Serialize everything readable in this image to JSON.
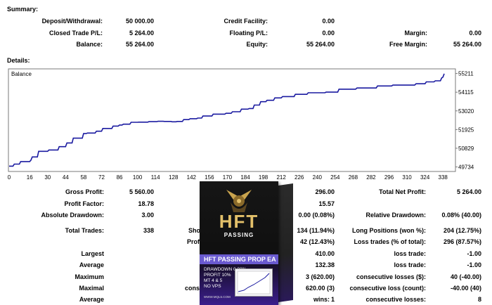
{
  "summary_title": "Summary:",
  "details_title": "Details:",
  "summary": {
    "deposit_label": "Deposit/Withdrawal:",
    "deposit": "50 000.00",
    "closed_pl_label": "Closed Trade P/L:",
    "closed_pl": "5 264.00",
    "balance_label": "Balance:",
    "balance": "55 264.00",
    "credit_label": "Credit Facility:",
    "credit": "0.00",
    "floating_label": "Floating P/L:",
    "floating": "0.00",
    "equity_label": "Equity:",
    "equity": "55 264.00",
    "margin_label": "Margin:",
    "margin": "0.00",
    "free_margin_label": "Free Margin:",
    "free_margin": "55 264.00"
  },
  "chart_data": {
    "type": "line",
    "title": "Balance",
    "x_ticks": [
      "0",
      "16",
      "30",
      "44",
      "58",
      "72",
      "86",
      "100",
      "114",
      "128",
      "142",
      "156",
      "170",
      "184",
      "198",
      "212",
      "226",
      "240",
      "254",
      "268",
      "282",
      "296",
      "310",
      "324",
      "338"
    ],
    "y_ticks": [
      "55211",
      "54115",
      "53020",
      "51925",
      "50829",
      "49734"
    ],
    "xlim": [
      0,
      345
    ],
    "ylim": [
      49550,
      55400
    ],
    "x": [
      0,
      3,
      4,
      8,
      9,
      16,
      17,
      18,
      22,
      23,
      30,
      31,
      38,
      39,
      44,
      45,
      49,
      50,
      57,
      58,
      60,
      61,
      67,
      68,
      72,
      73,
      80,
      81,
      85,
      86,
      88,
      89,
      94,
      95,
      100,
      101,
      108,
      109,
      115,
      116,
      120,
      121,
      126,
      127,
      130,
      131,
      135,
      136,
      140,
      141,
      146,
      147,
      150,
      151,
      158,
      159,
      168,
      169,
      173,
      174,
      180,
      181,
      186,
      187,
      190,
      191,
      195,
      196,
      200,
      201,
      206,
      207,
      212,
      213,
      222,
      223,
      232,
      233,
      246,
      247,
      256,
      257,
      270,
      271,
      286,
      287,
      298,
      299,
      316,
      317,
      324,
      325,
      331,
      332,
      336,
      337,
      338,
      339
    ],
    "y": [
      49780,
      49780,
      49900,
      49900,
      50050,
      50050,
      50130,
      50320,
      50320,
      50650,
      50650,
      50730,
      50730,
      50920,
      50920,
      51140,
      51140,
      51420,
      51420,
      51690,
      51690,
      51720,
      51720,
      51830,
      51830,
      51990,
      51990,
      52130,
      52130,
      52190,
      52190,
      52240,
      52240,
      52350,
      52350,
      52360,
      52360,
      52390,
      52390,
      52410,
      52410,
      52400,
      52400,
      52380,
      52380,
      52400,
      52400,
      52510,
      52510,
      52560,
      52560,
      52600,
      52600,
      52720,
      52720,
      52830,
      52830,
      52880,
      52880,
      52970,
      52970,
      53120,
      53120,
      53160,
      53160,
      53360,
      53360,
      53560,
      53560,
      53640,
      53640,
      53780,
      53780,
      53860,
      53860,
      53990,
      53990,
      54080,
      54080,
      54120,
      54120,
      54290,
      54290,
      54360,
      54360,
      54480,
      54480,
      54530,
      54530,
      54610,
      54610,
      54720,
      54720,
      54780,
      54780,
      54950,
      55000,
      55200
    ]
  },
  "stats_left": {
    "gross_profit_label": "Gross Profit:",
    "gross_profit": "5 560.00",
    "profit_factor_label": "Profit Factor:",
    "profit_factor": "18.78",
    "abs_dd_label": "Absolute Drawdown:",
    "abs_dd": "3.00",
    "total_trades_label": "Total Trades:",
    "total_trades": "338",
    "largest_label": "Largest",
    "average_label": "Average",
    "maximum_label": "Maximum",
    "maximal_label": "Maximal",
    "average2_label": "Average"
  },
  "stats_mid": {
    "short_label": "Sho",
    "profit_label": "Profi",
    "consec_label": "conse",
    "wins_label": "wins:",
    "v1": "296.00",
    "v2": "15.57",
    "v3": "0.00 (0.08%)",
    "v4": "134 (11.94%)",
    "v5": "42 (12.43%)",
    "v6": "410.00",
    "v7": "132.38",
    "v8": "3 (620.00)",
    "v9": "620.00 (3)",
    "v10": "1"
  },
  "stats_right": {
    "net_profit_label": "Total Net Profit:",
    "net_profit": "5 264.00",
    "rel_dd_label": "Relative Drawdown:",
    "rel_dd": "0.08% (40.00)",
    "long_label": "Long Positions (won %):",
    "long": "204 (12.75%)",
    "loss_trades_label": "Loss trades (% of total):",
    "loss_trades": "296 (87.57%)",
    "loss_trade1_label": "loss trade:",
    "loss_trade1": "-1.00",
    "loss_trade2_label": "loss trade:",
    "loss_trade2": "-1.00",
    "consec_losses_label": "consecutive losses ($):",
    "consec_losses": "40 (-40.00)",
    "consec_loss_count_label": "consecutive loss (count):",
    "consec_loss_count": "-40.00 (40)",
    "consec_losses2_label": "consecutive losses:",
    "consec_losses2": "8"
  },
  "product": {
    "logo": "HFT",
    "logo_sub": "PASSING",
    "title": "HFT PASSING PROP EA",
    "features": [
      "DRAWDOWN 0.08%",
      "PROFIT 10%",
      "MT 4 & 5",
      "NO VPS"
    ],
    "fine_print": "WWW.MQL5.COM",
    "accent": "#6a5ad0",
    "gold": "#e3c06a"
  },
  "colors": {
    "line": "#1a1aa0",
    "frame": "#7a7a7a"
  }
}
